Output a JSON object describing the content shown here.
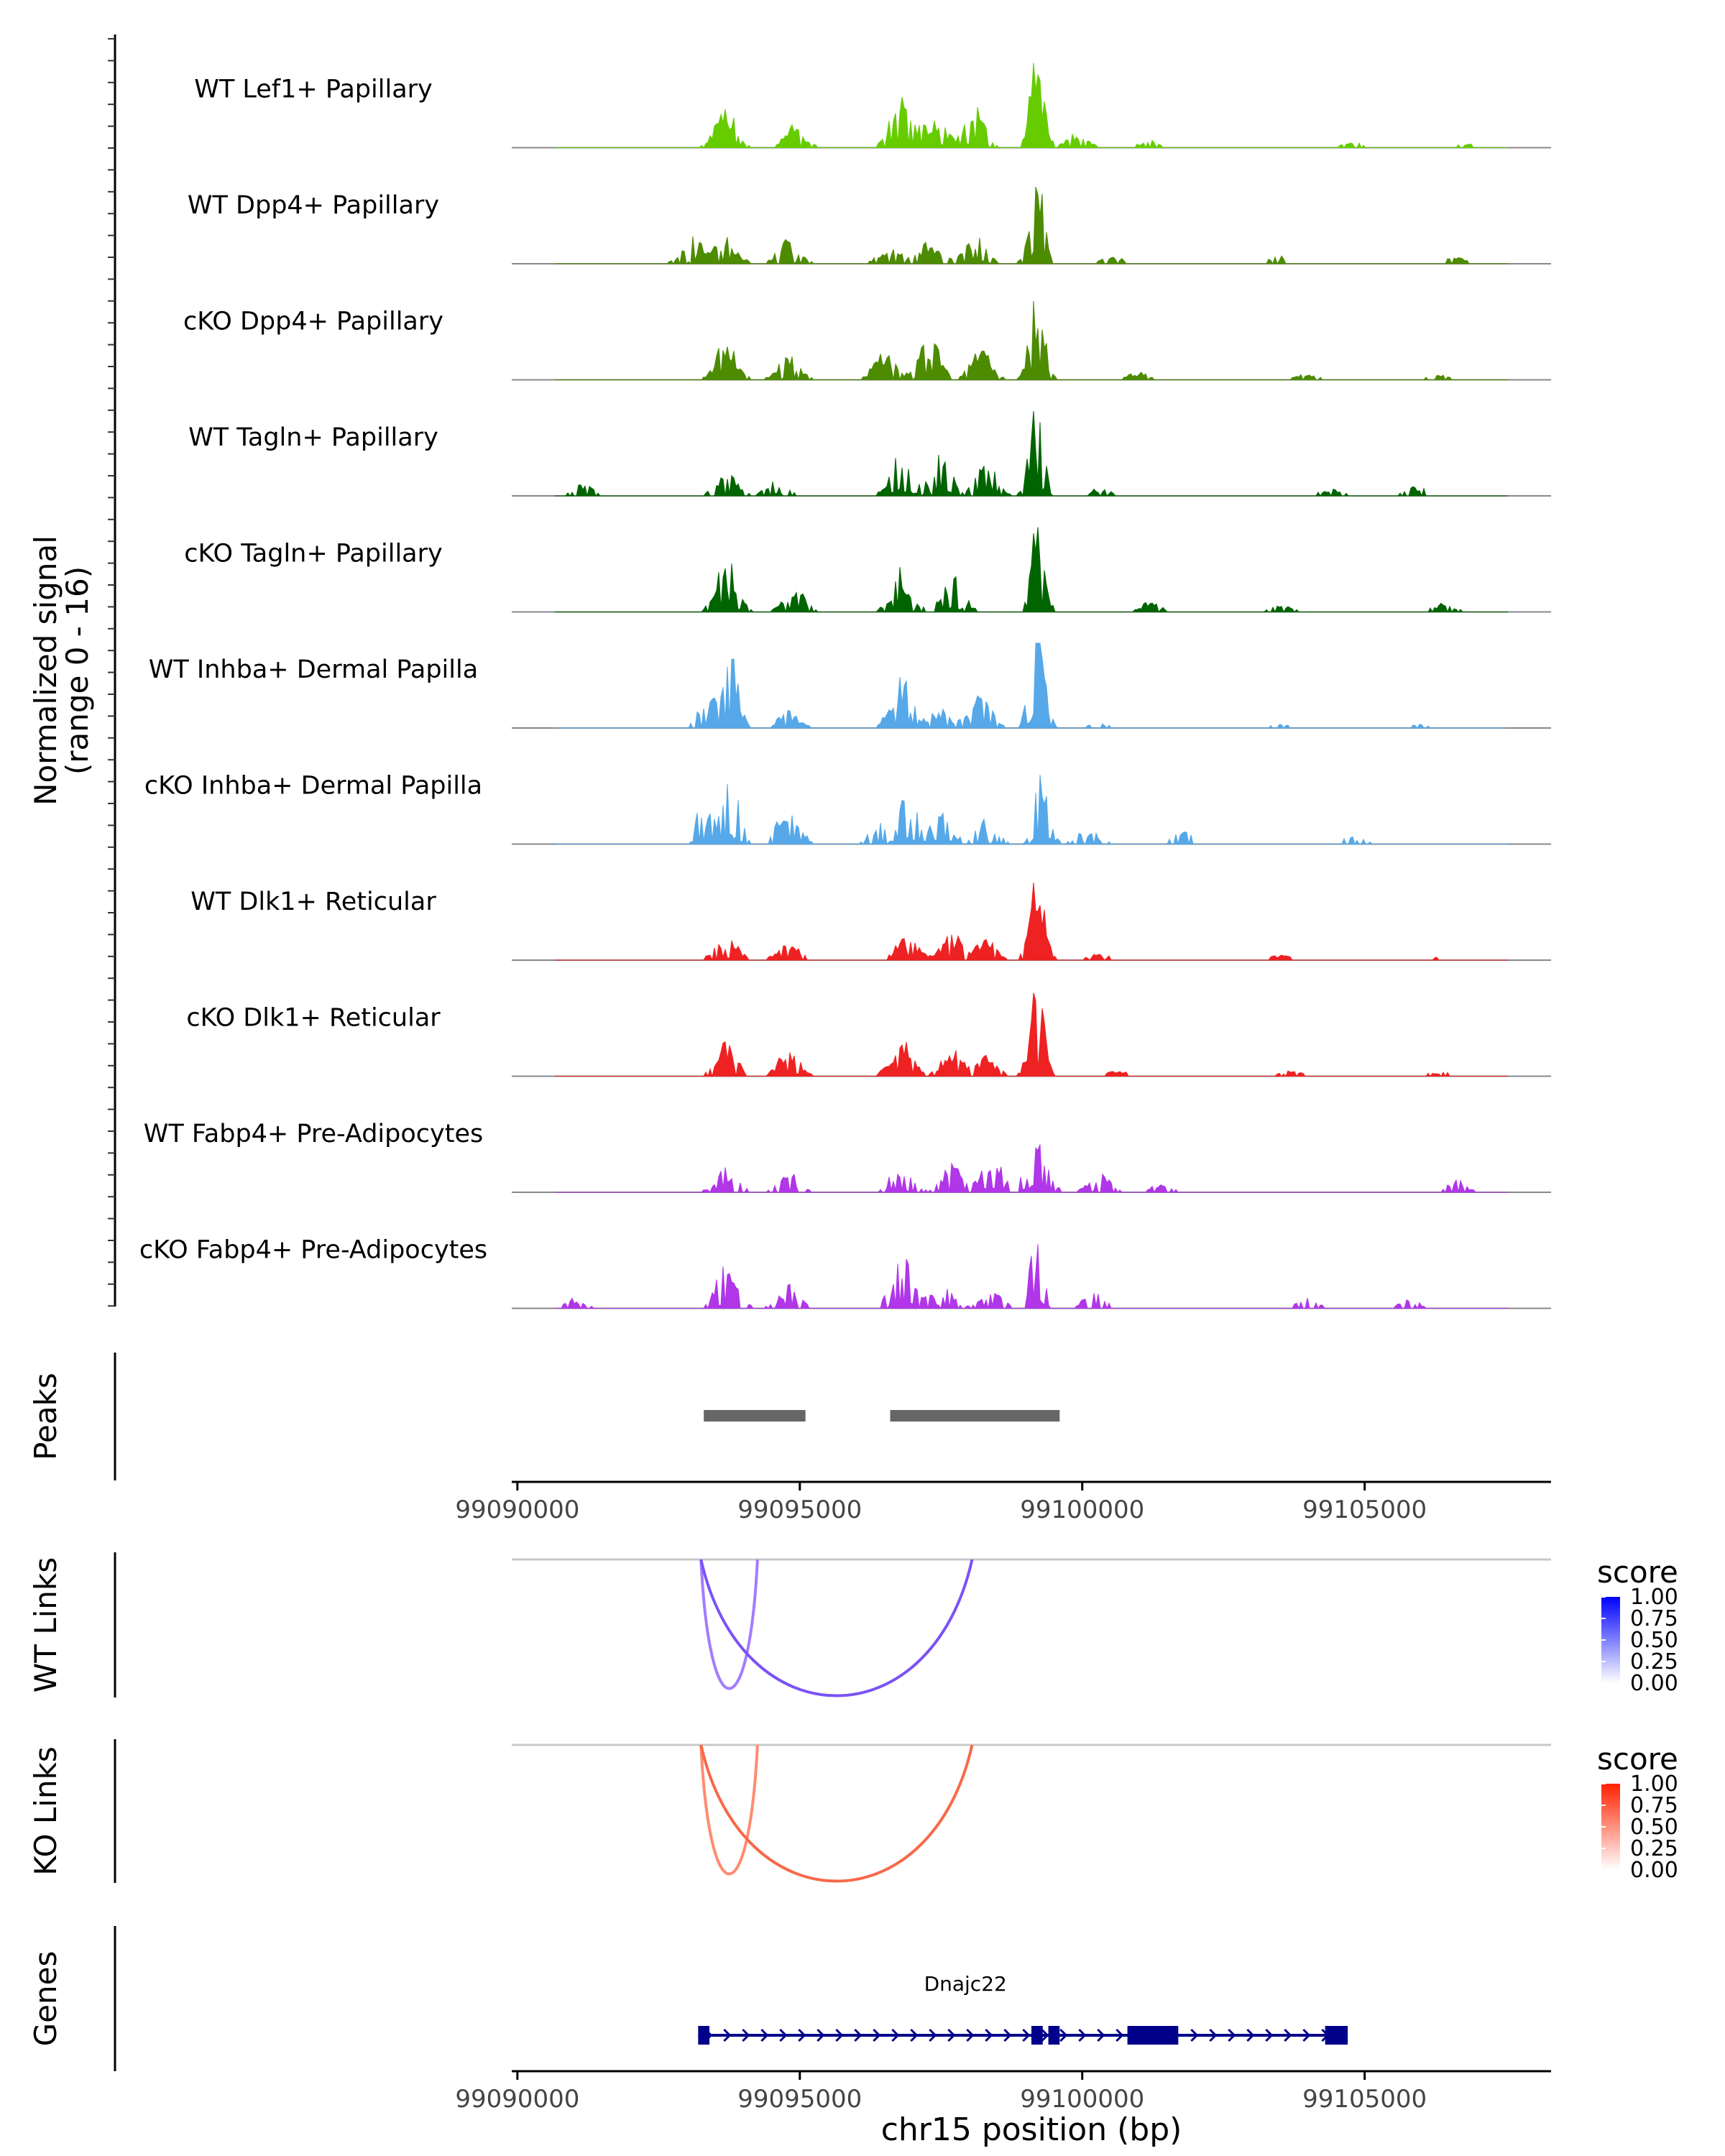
{
  "chart_data": {
    "type": "area",
    "title": "",
    "chromosome": "chr15",
    "x_range": [
      99089900,
      99108300
    ],
    "coverage": {
      "ylabel_line1": "Normalized signal",
      "ylabel_line2": "(range 0 - 16)",
      "y_range": [
        0,
        16
      ],
      "tracks": [
        {
          "label": "WT Lef1+ Papillary",
          "color": "#66CC00",
          "seed": 11,
          "density": 0.85,
          "peaks": [
            [
              99093700,
              6.5
            ],
            [
              99094900,
              3.5
            ],
            [
              99096800,
              8.5
            ],
            [
              99097400,
              5
            ],
            [
              99098100,
              6
            ],
            [
              99099200,
              14
            ],
            [
              99099900,
              2.2
            ],
            [
              99101200,
              1.2
            ],
            [
              99104800,
              0.8
            ],
            [
              99106800,
              0.6
            ]
          ]
        },
        {
          "label": "WT Dpp4+ Papillary",
          "color": "#4D8B00",
          "seed": 23,
          "density": 0.7,
          "peaks": [
            [
              99093100,
              4
            ],
            [
              99093700,
              4.5
            ],
            [
              99094800,
              4
            ],
            [
              99096600,
              3
            ],
            [
              99097300,
              3.5
            ],
            [
              99098100,
              5
            ],
            [
              99099200,
              14
            ],
            [
              99100500,
              1.5
            ],
            [
              99103500,
              1.2
            ],
            [
              99106600,
              1
            ]
          ]
        },
        {
          "label": "cKO Dpp4+ Papillary",
          "color": "#4D8B00",
          "seed": 37,
          "density": 0.85,
          "peaks": [
            [
              99093700,
              6
            ],
            [
              99094800,
              4
            ],
            [
              99096500,
              4.5
            ],
            [
              99097300,
              6.5
            ],
            [
              99098200,
              5
            ],
            [
              99099200,
              13
            ],
            [
              99101000,
              1.2
            ],
            [
              99104000,
              1
            ],
            [
              99106300,
              0.8
            ]
          ]
        },
        {
          "label": "WT Tagln+ Papillary",
          "color": "#006400",
          "seed": 41,
          "density": 0.65,
          "peaks": [
            [
              99091200,
              2
            ],
            [
              99093700,
              3.5
            ],
            [
              99094600,
              2.5
            ],
            [
              99096800,
              7.5
            ],
            [
              99097500,
              6
            ],
            [
              99098300,
              5
            ],
            [
              99099200,
              14
            ],
            [
              99100300,
              1.2
            ],
            [
              99104400,
              1.2
            ],
            [
              99105900,
              1.5
            ]
          ]
        },
        {
          "label": "cKO Tagln+ Papillary",
          "color": "#006400",
          "seed": 53,
          "density": 0.72,
          "peaks": [
            [
              99093700,
              8
            ],
            [
              99094900,
              4
            ],
            [
              99096800,
              6.5
            ],
            [
              99097700,
              6
            ],
            [
              99099200,
              13
            ],
            [
              99101200,
              1.5
            ],
            [
              99103500,
              1.3
            ],
            [
              99106400,
              1.5
            ]
          ]
        },
        {
          "label": "WT Inhba+ Dermal Papilla",
          "color": "#56A8E8",
          "seed": 67,
          "density": 0.75,
          "peaks": [
            [
              99093400,
              5
            ],
            [
              99093800,
              10
            ],
            [
              99094800,
              2.5
            ],
            [
              99096800,
              8
            ],
            [
              99097500,
              3
            ],
            [
              99098200,
              5
            ],
            [
              99099200,
              16
            ],
            [
              99100300,
              0.8
            ],
            [
              99103500,
              0.6
            ],
            [
              99106000,
              0.6
            ]
          ]
        },
        {
          "label": "cKO Inhba+ Dermal Papilla",
          "color": "#56A8E8",
          "seed": 71,
          "density": 0.55,
          "peaks": [
            [
              99093300,
              6
            ],
            [
              99093800,
              12
            ],
            [
              99094800,
              7
            ],
            [
              99096400,
              3
            ],
            [
              99096900,
              8
            ],
            [
              99097500,
              5
            ],
            [
              99098300,
              4
            ],
            [
              99099300,
              12
            ],
            [
              99100100,
              2.5
            ],
            [
              99101800,
              2
            ],
            [
              99104800,
              1.3
            ]
          ]
        },
        {
          "label": "WT Dlk1+ Reticular",
          "color": "#EE2222",
          "seed": 83,
          "density": 0.8,
          "peaks": [
            [
              99093700,
              4
            ],
            [
              99094800,
              3
            ],
            [
              99096900,
              4
            ],
            [
              99097700,
              4
            ],
            [
              99098300,
              3
            ],
            [
              99099200,
              13
            ],
            [
              99100300,
              1
            ],
            [
              99103500,
              0.8
            ],
            [
              99106300,
              0.5
            ]
          ]
        },
        {
          "label": "cKO Dlk1+ Reticular",
          "color": "#EE2222",
          "seed": 97,
          "density": 0.85,
          "peaks": [
            [
              99093700,
              5
            ],
            [
              99094800,
              4
            ],
            [
              99096800,
              6
            ],
            [
              99097700,
              4
            ],
            [
              99098300,
              3
            ],
            [
              99099200,
              14
            ],
            [
              99100600,
              1
            ],
            [
              99103700,
              0.8
            ],
            [
              99106300,
              0.8
            ]
          ]
        },
        {
          "label": "WT Fabp4+ Pre-Adipocytes",
          "color": "#B036E8",
          "seed": 101,
          "density": 0.6,
          "peaks": [
            [
              99093700,
              4
            ],
            [
              99094800,
              3
            ],
            [
              99096800,
              4.5
            ],
            [
              99097700,
              4.5
            ],
            [
              99098400,
              6
            ],
            [
              99099200,
              7.5
            ],
            [
              99100300,
              3
            ],
            [
              99101400,
              1.5
            ],
            [
              99106600,
              2
            ]
          ]
        },
        {
          "label": "cKO Fabp4+ Pre-Adipocytes",
          "color": "#B036E8",
          "seed": 113,
          "density": 0.65,
          "peaks": [
            [
              99091000,
              1.5
            ],
            [
              99093700,
              7
            ],
            [
              99094800,
              3.5
            ],
            [
              99096800,
              8
            ],
            [
              99097500,
              4
            ],
            [
              99098400,
              3
            ],
            [
              99099200,
              12
            ],
            [
              99100200,
              2.5
            ],
            [
              99104000,
              2
            ],
            [
              99105800,
              1.5
            ]
          ]
        }
      ]
    },
    "peaks_track": {
      "label": "Peaks",
      "color": "#666666",
      "regions": [
        [
          99093300,
          99095100
        ],
        [
          99096600,
          99099600
        ]
      ]
    },
    "axis": {
      "ticks": [
        99090000,
        99095000,
        99100000,
        99105000
      ],
      "tick_labels": [
        "99090000",
        "99095000",
        "99100000",
        "99105000"
      ],
      "xlabel": "chr15 position (bp)"
    },
    "links": [
      {
        "label": "WT Links",
        "legend_title": "score",
        "color_high": "#0000FF",
        "color_low": "#FFFFFF",
        "arcs": [
          {
            "start": 99093250,
            "end": 99094250,
            "score": 0.45,
            "color": "#A27CFF"
          },
          {
            "start": 99093250,
            "end": 99098050,
            "score": 0.75,
            "color": "#7B52F5"
          }
        ]
      },
      {
        "label": "KO Links",
        "legend_title": "score",
        "color_high": "#FF2200",
        "color_low": "#FFFFFF",
        "arcs": [
          {
            "start": 99093250,
            "end": 99094250,
            "score": 0.45,
            "color": "#FF8C70"
          },
          {
            "start": 99093250,
            "end": 99098050,
            "score": 0.75,
            "color": "#F86848"
          }
        ]
      }
    ],
    "legend_ticks": [
      "1.00",
      "0.75",
      "0.50",
      "0.25",
      "0.00"
    ],
    "genes": {
      "label": "Genes",
      "color": "#00008B",
      "gene": {
        "name": "Dnajc22",
        "start": 99093200,
        "end": 99104700,
        "strand": "+",
        "exons": [
          [
            99093200,
            99093400
          ],
          [
            99099100,
            99099300
          ],
          [
            99099400,
            99099600
          ],
          [
            99100800,
            99101700
          ],
          [
            99104300,
            99104700
          ]
        ]
      }
    }
  }
}
